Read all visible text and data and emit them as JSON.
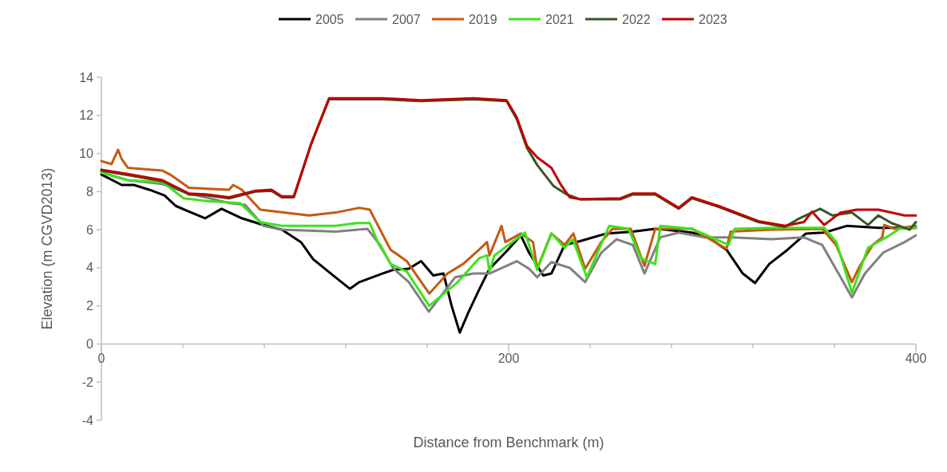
{
  "chart_data": {
    "type": "line",
    "xlabel": "Distance from Benchmark (m)",
    "ylabel": "Elevation (m CGVD2013)",
    "xlim": [
      0,
      400
    ],
    "ylim": [
      -4,
      14
    ],
    "xticks": [
      0,
      {
        "value": 40,
        "label": null
      },
      {
        "value": 80,
        "label": null
      },
      {
        "value": 120,
        "label": null
      },
      {
        "value": 160,
        "label": null
      },
      200,
      {
        "value": 240,
        "label": null
      },
      {
        "value": 280,
        "label": null
      },
      {
        "value": 320,
        "label": null
      },
      {
        "value": 360,
        "label": null
      },
      400
    ],
    "yticks": [
      -4,
      -2,
      0,
      2,
      4,
      6,
      8,
      10,
      12,
      14
    ],
    "grid": false,
    "legend": "top",
    "series": [
      {
        "name": "2005",
        "color": "#000000",
        "x": [
          0,
          10,
          16,
          23.5,
          31,
          36.5,
          43,
          51,
          59,
          69,
          78,
          88.6,
          98,
          104,
          115,
          122,
          126.7,
          138,
          143.5,
          151,
          157,
          163,
          168,
          172,
          176,
          180,
          185.5,
          190.6,
          198.4,
          206,
          210,
          217,
          221,
          227.5,
          235,
          248,
          261,
          272,
          277,
          290,
          298,
          307,
          315,
          321,
          328,
          337,
          346,
          355,
          366,
          381.6,
          400
        ],
        "values": [
          8.9,
          8.35,
          8.35,
          8.1,
          7.8,
          7.25,
          6.95,
          6.6,
          7.1,
          6.6,
          6.3,
          6.0,
          5.35,
          4.45,
          3.5,
          2.9,
          3.25,
          3.7,
          3.9,
          3.95,
          4.35,
          3.6,
          3.7,
          2.0,
          0.6,
          1.6,
          2.85,
          3.95,
          4.8,
          5.7,
          4.8,
          3.6,
          3.7,
          5.2,
          5.4,
          5.8,
          5.9,
          6.05,
          6.0,
          5.85,
          5.6,
          4.95,
          3.7,
          3.2,
          4.2,
          4.95,
          5.8,
          5.85,
          6.2,
          6.1,
          6.1
        ]
      },
      {
        "name": "2007",
        "color": "#808080",
        "x": [
          0,
          13,
          30,
          43,
          63,
          70.6,
          79.6,
          88.6,
          115,
          130.6,
          135.7,
          143.5,
          151,
          160.8,
          167,
          173.7,
          182.7,
          190.6,
          204,
          210,
          214,
          221,
          230,
          237.6,
          245.5,
          253,
          261,
          266.7,
          274.5,
          283.5,
          296.5,
          310,
          329,
          345,
          354,
          362,
          368.6,
          375,
          384,
          394.5,
          400
        ],
        "values": [
          9.0,
          8.6,
          8.4,
          7.9,
          7.4,
          7.3,
          6.2,
          6.0,
          5.9,
          6.05,
          5.35,
          3.95,
          3.25,
          1.7,
          2.55,
          3.5,
          3.7,
          3.7,
          4.35,
          3.95,
          3.5,
          4.3,
          4.0,
          3.25,
          4.8,
          5.5,
          5.2,
          3.7,
          5.6,
          5.85,
          5.6,
          5.6,
          5.5,
          5.6,
          5.2,
          3.7,
          2.45,
          3.7,
          4.8,
          5.35,
          5.7
        ]
      },
      {
        "name": "2019",
        "color": "#c55a11",
        "x": [
          0,
          5,
          8.2,
          10,
          13,
          30,
          33.7,
          43,
          62.7,
          64.7,
          69,
          78,
          102,
          115,
          126.7,
          131.8,
          135.7,
          142,
          150,
          161,
          170,
          177.6,
          185.5,
          189.4,
          190.6,
          196.5,
          198.4,
          206,
          212,
          214,
          221,
          227.5,
          231.8,
          237.6,
          245.5,
          251,
          260,
          266.7,
          272,
          290,
          307,
          309,
          329,
          354,
          360.8,
          368.6,
          372.5,
          378.8,
          383.5,
          384.5,
          389.4,
          400
        ],
        "values": [
          9.6,
          9.45,
          10.2,
          9.7,
          9.25,
          9.1,
          8.9,
          8.2,
          8.1,
          8.35,
          8.1,
          7.05,
          6.75,
          6.9,
          7.15,
          7.05,
          6.25,
          4.95,
          4.35,
          2.65,
          3.7,
          4.2,
          4.95,
          5.35,
          4.65,
          6.2,
          5.35,
          5.8,
          5.35,
          3.95,
          5.8,
          5.2,
          5.8,
          3.95,
          5.35,
          6.05,
          6.05,
          4.1,
          6.05,
          6.05,
          5.0,
          5.9,
          6.0,
          6.05,
          5.2,
          3.25,
          4.1,
          5.2,
          5.6,
          6.25,
          6.05,
          6.2
        ]
      },
      {
        "name": "2021",
        "color": "#3ee21c",
        "x": [
          0,
          13,
          30,
          40.4,
          52,
          68,
          78,
          88.6,
          115,
          125.5,
          131.8,
          135.7,
          137,
          142,
          150,
          161,
          175,
          185.5,
          189.4,
          190.6,
          193,
          208,
          214,
          221,
          227.5,
          231.5,
          238.4,
          249.4,
          258.8,
          265,
          272,
          274.5,
          290,
          308,
          311,
          329,
          355,
          361,
          368.6,
          376.5,
          385.5,
          392,
          400
        ],
        "values": [
          9.0,
          8.6,
          8.5,
          7.65,
          7.5,
          7.4,
          6.4,
          6.2,
          6.2,
          6.35,
          6.35,
          5.35,
          5.2,
          4.2,
          3.8,
          2.0,
          3.25,
          4.5,
          4.65,
          3.8,
          4.65,
          5.85,
          3.9,
          5.8,
          5.05,
          5.5,
          3.5,
          6.2,
          6.05,
          4.5,
          4.2,
          6.2,
          6.05,
          5.2,
          6.05,
          6.1,
          6.1,
          5.35,
          2.7,
          5.05,
          5.6,
          6.05,
          6.1
        ]
      },
      {
        "name": "2022",
        "color": "#375623",
        "x": [
          0,
          14,
          30,
          43,
          52,
          62.7,
          75.7,
          83.5,
          88.6,
          94.5,
          96.5,
          103,
          111.8,
          138,
          157,
          182.7,
          199,
          204,
          209,
          214,
          222,
          228.6,
          235,
          255,
          261,
          269,
          272,
          283.5,
          290,
          303,
          322.7,
          335.7,
          342,
          353,
          359,
          368.6,
          376.5,
          381.6,
          388,
          397,
          400
        ],
        "values": [
          9.1,
          8.85,
          8.55,
          7.85,
          7.8,
          7.65,
          8.0,
          8.05,
          7.7,
          7.7,
          8.35,
          10.5,
          12.85,
          12.85,
          12.75,
          12.85,
          12.75,
          11.8,
          10.3,
          9.4,
          8.3,
          7.85,
          7.6,
          7.6,
          7.85,
          7.85,
          7.85,
          7.1,
          7.65,
          7.2,
          6.4,
          6.15,
          6.55,
          7.1,
          6.75,
          6.9,
          6.25,
          6.75,
          6.35,
          6.0,
          6.4
        ]
      },
      {
        "name": "2023",
        "color": "#c00000",
        "x": [
          0,
          14,
          30,
          43,
          52,
          62.7,
          75.7,
          83.5,
          88.6,
          94.5,
          96.5,
          103,
          111.8,
          138,
          157,
          182.7,
          199,
          204,
          209,
          214,
          221,
          226,
          230,
          235,
          255,
          261,
          269,
          272,
          283.5,
          290,
          303,
          322.7,
          335.7,
          345,
          349,
          355,
          363,
          371,
          381.6,
          394.5,
          400
        ],
        "values": [
          9.15,
          8.9,
          8.6,
          7.9,
          7.85,
          7.7,
          8.05,
          8.1,
          7.75,
          7.75,
          8.4,
          10.5,
          12.9,
          12.9,
          12.8,
          12.9,
          12.8,
          11.9,
          10.4,
          9.8,
          9.25,
          8.3,
          7.7,
          7.6,
          7.65,
          7.9,
          7.9,
          7.9,
          7.15,
          7.7,
          7.25,
          6.45,
          6.2,
          6.4,
          6.95,
          6.25,
          6.9,
          7.05,
          7.05,
          6.75,
          6.75
        ]
      }
    ]
  }
}
